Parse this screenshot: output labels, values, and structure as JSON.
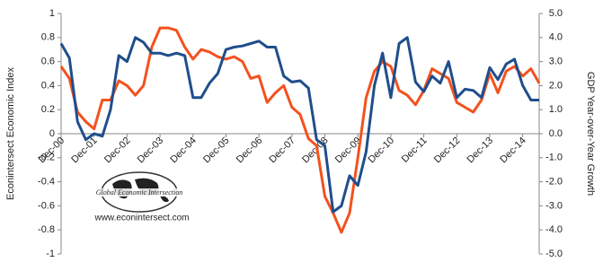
{
  "chart_data": {
    "type": "line",
    "y_label": "Econintersect Economic Index",
    "y2_label": "GDP Year-over-Year Growth",
    "annotations": [
      "Global Economic Intersection",
      "www.econintersect.com"
    ],
    "categories": [
      "Dec-00",
      null,
      null,
      null,
      "Dec-01",
      null,
      null,
      null,
      "Dec-02",
      null,
      null,
      null,
      "Dec-03",
      null,
      null,
      null,
      "Dec-04",
      null,
      null,
      null,
      "Dec-05",
      null,
      null,
      null,
      "Dec-06",
      null,
      null,
      null,
      "Dec-07",
      null,
      null,
      null,
      "Dec-08",
      null,
      null,
      null,
      "Dec-09",
      null,
      null,
      null,
      "Dec-10",
      null,
      null,
      null,
      "Dec-11",
      null,
      null,
      null,
      "Dec-12",
      null,
      null,
      null,
      "Dec-13",
      null,
      null,
      null,
      "Dec-14",
      null,
      null
    ],
    "series": [
      {
        "name": "Econintersect Economic Index",
        "color": "#1f4e8c",
        "axis": "y",
        "values": [
          0.75,
          0.63,
          0.1,
          -0.05,
          0.0,
          -0.02,
          0.2,
          0.65,
          0.6,
          0.8,
          0.76,
          0.67,
          0.67,
          0.65,
          0.67,
          0.65,
          0.3,
          0.3,
          0.42,
          0.5,
          0.7,
          0.72,
          0.73,
          0.75,
          0.77,
          0.72,
          0.72,
          0.48,
          0.43,
          0.44,
          0.38,
          -0.05,
          -0.1,
          -0.65,
          -0.6,
          -0.35,
          -0.43,
          -0.15,
          0.4,
          0.67,
          0.3,
          0.75,
          0.8,
          0.43,
          0.35,
          0.48,
          0.42,
          0.6,
          0.3,
          0.37,
          0.36,
          0.3,
          0.55,
          0.45,
          0.58,
          0.62,
          0.4,
          0.28,
          0.28
        ]
      },
      {
        "name": "GDP Year-over-Year Growth",
        "color": "#f4511e",
        "axis": "y2",
        "values": [
          2.8,
          2.3,
          0.9,
          0.5,
          0.2,
          1.4,
          1.4,
          2.2,
          2.0,
          1.6,
          2.0,
          3.6,
          4.4,
          4.4,
          4.3,
          3.6,
          3.1,
          3.5,
          3.4,
          3.2,
          3.1,
          3.2,
          3.0,
          2.3,
          2.4,
          1.3,
          1.7,
          2.0,
          1.1,
          0.8,
          -0.2,
          -0.5,
          -2.6,
          -3.3,
          -4.1,
          -3.3,
          -1.0,
          1.5,
          2.6,
          3.0,
          2.8,
          1.8,
          1.6,
          1.2,
          1.8,
          2.7,
          2.5,
          2.3,
          1.3,
          1.1,
          0.9,
          1.4,
          2.5,
          1.7,
          2.6,
          2.8,
          2.4,
          2.7,
          2.1
        ]
      }
    ],
    "ylim": [
      -1,
      1
    ],
    "yticks": [
      -1,
      -0.8,
      -0.6,
      -0.4,
      -0.2,
      0,
      0.2,
      0.4,
      0.6,
      0.8,
      1
    ],
    "y2lim": [
      -5,
      5
    ],
    "y2ticks": [
      {
        "value": -5,
        "label": "-5.0"
      },
      {
        "value": -4,
        "label": "-4.0"
      },
      {
        "value": -3,
        "label": "-3.0"
      },
      {
        "value": -2,
        "label": "-2.0"
      },
      {
        "value": -1,
        "label": "-1.0"
      },
      {
        "value": 0,
        "label": "0.0"
      },
      {
        "value": 1,
        "label": "1.0"
      },
      {
        "value": 2,
        "label": "2.0"
      },
      {
        "value": 3,
        "label": "3.0"
      },
      {
        "value": 4,
        "label": "4.0"
      },
      {
        "value": 5,
        "label": "5.0"
      }
    ],
    "grid": false
  }
}
